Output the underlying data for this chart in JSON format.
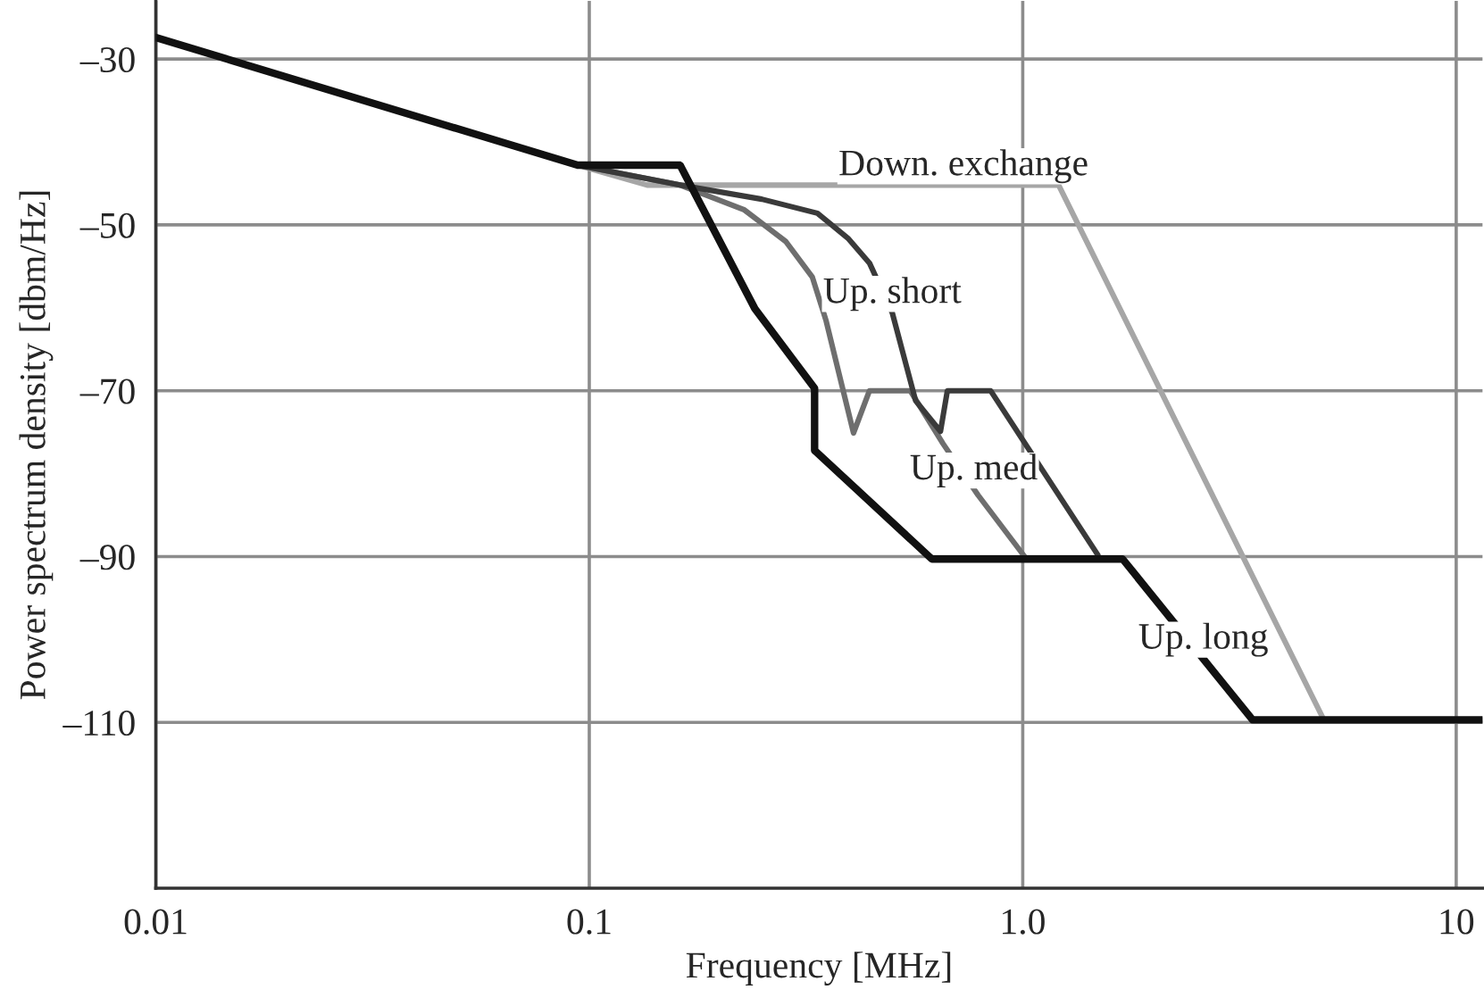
{
  "chart_data": {
    "type": "line",
    "xlabel": "Frequency [MHz]",
    "ylabel": "Power spectrum density [dbm/Hz]",
    "log": "x",
    "xlim": [
      0.01,
      11.5
    ],
    "ylim": [
      -130,
      -23
    ],
    "xticks": [
      0.01,
      0.1,
      {
        "value": 1,
        "label": "1.0"
      },
      10
    ],
    "yticks": [
      {
        "value": -30,
        "label": "–30"
      },
      {
        "value": -50,
        "label": "–50"
      },
      {
        "value": -70,
        "label": "–70"
      },
      {
        "value": -90,
        "label": "–90"
      },
      {
        "value": -110,
        "label": "–110"
      }
    ],
    "grid": true,
    "line_style": "solid",
    "marker": "none",
    "series": [
      {
        "color": "#a6a6a6",
        "x": [
          0.094,
          0.136,
          1.21,
          4.95,
          11.5
        ],
        "values": [
          -42.8,
          -45.2,
          -45.2,
          -109.7,
          -109.7
        ]
      },
      {
        "color": "#6e6e6e",
        "x": [
          0.094,
          0.162,
          0.228,
          0.284,
          0.327,
          0.352,
          0.407,
          0.443,
          0.55,
          0.655,
          0.789,
          1.02
        ],
        "values": [
          -42.8,
          -45.2,
          -48.2,
          -52,
          -56.3,
          -61.6,
          -75.1,
          -70,
          -70,
          -76.4,
          -82.6,
          -90.3
        ]
      },
      {
        "color": "#3a3a3a",
        "x": [
          0.094,
          0.162,
          0.25,
          0.336,
          0.395,
          0.443,
          0.5,
          0.566,
          0.646,
          0.67,
          0.843,
          1.49
        ],
        "values": [
          -42.8,
          -45.2,
          -46.9,
          -48.6,
          -51.6,
          -54.6,
          -60.6,
          -71.2,
          -74.9,
          -70,
          -70,
          -89.8
        ]
      },
      {
        "color": "#111111",
        "x": [
          0.01,
          0.094,
          0.162,
          0.241,
          0.331,
          0.331,
          0.617,
          1.7,
          3.39,
          11.5
        ],
        "values": [
          -27.4,
          -42.8,
          -42.8,
          -60.1,
          -69.7,
          -77.2,
          -90.3,
          -90.3,
          -109.7,
          -109.7
        ]
      }
    ],
    "annotations": [
      {
        "text": "Down. exchange",
        "x": 0.73,
        "y": -45.2
      },
      {
        "text": "Up. short",
        "x": 0.5,
        "y": -60.6
      },
      {
        "text": "Up. med",
        "x": 0.771,
        "y": -81.9
      },
      {
        "text": "Up. long",
        "x": 2.61,
        "y": -102.3
      }
    ]
  }
}
